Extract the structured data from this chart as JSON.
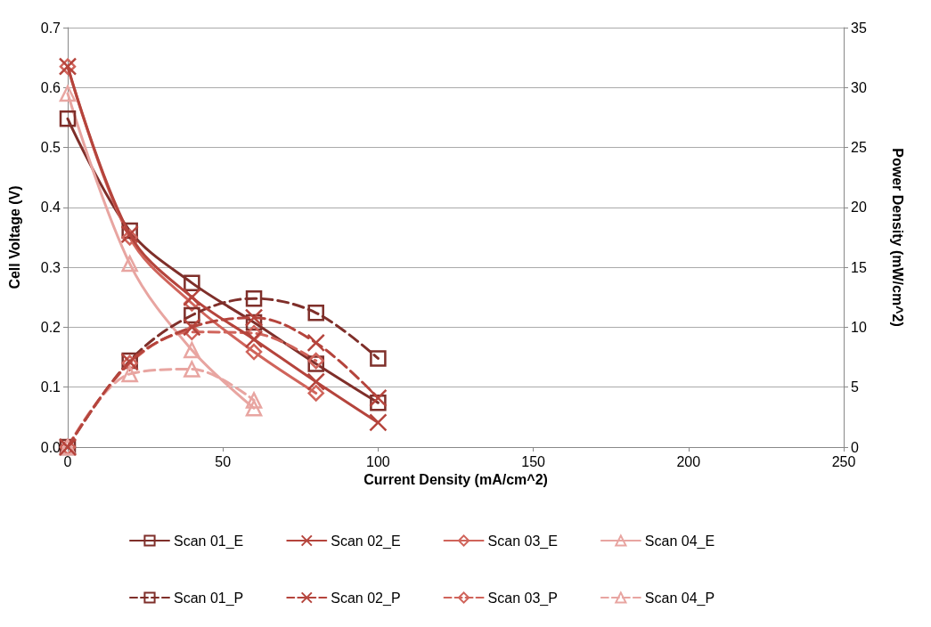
{
  "chart_data": {
    "type": "line",
    "xlabel": "Current Density (mA/cm^2)",
    "ylabel": "Cell Voltage (V)",
    "y2label": "Power Density (mW/cm^2)",
    "x": [
      0,
      20,
      40,
      60,
      80,
      100
    ],
    "series": [
      {
        "name": "Scan 01_E",
        "color": "#7f2f2a",
        "marker": "square",
        "line_style": "solid",
        "values": [
          0.548,
          0.361,
          0.274,
          0.208,
          0.139,
          0.074
        ]
      },
      {
        "name": "Scan 02_E",
        "color": "#b5443c",
        "marker": "cross",
        "line_style": "solid",
        "values": [
          0.635,
          0.355,
          0.25,
          0.18,
          0.109,
          0.041
        ]
      },
      {
        "name": "Scan 03_E",
        "color": "#d0645b",
        "marker": "diamond",
        "line_style": "solid",
        "values": [
          0.635,
          0.35,
          0.24,
          0.159,
          0.09,
          null
        ]
      },
      {
        "name": "Scan 04_E",
        "color": "#e8a5a1",
        "marker": "triangle",
        "line_style": "solid",
        "values": [
          0.59,
          0.306,
          0.162,
          0.065,
          null,
          null
        ]
      },
      {
        "name": "Scan 01_P",
        "color": "#7f2f2a",
        "marker": "square",
        "line_style": "dashed",
        "axis": "y2",
        "values": [
          0,
          7.2,
          11.0,
          12.4,
          11.2,
          7.4
        ]
      },
      {
        "name": "Scan 02_P",
        "color": "#b5443c",
        "marker": "cross",
        "line_style": "dashed",
        "axis": "y2",
        "values": [
          0,
          7.1,
          10.0,
          10.8,
          8.7,
          4.1
        ]
      },
      {
        "name": "Scan 03_P",
        "color": "#d0645b",
        "marker": "diamond",
        "line_style": "dashed",
        "axis": "y2",
        "values": [
          0,
          7.0,
          9.6,
          9.5,
          7.2,
          null
        ]
      },
      {
        "name": "Scan 04_P",
        "color": "#e8a5a1",
        "marker": "triangle",
        "line_style": "dashed",
        "axis": "y2",
        "values": [
          0,
          6.1,
          6.5,
          3.9,
          null,
          null
        ]
      }
    ],
    "xlim": [
      0,
      250
    ],
    "xticks": [
      0,
      50,
      100,
      150,
      200,
      250
    ],
    "ylim": [
      0,
      0.7
    ],
    "yticks": [
      {
        "value": 0,
        "label": "0.0"
      },
      0.1,
      0.2,
      0.3,
      0.4,
      0.5,
      0.6,
      0.7
    ],
    "y2lim": [
      0,
      35
    ],
    "y2ticks": [
      0,
      5,
      10,
      15,
      20,
      25,
      30,
      35
    ],
    "grid": "y",
    "legend": "bottom"
  }
}
